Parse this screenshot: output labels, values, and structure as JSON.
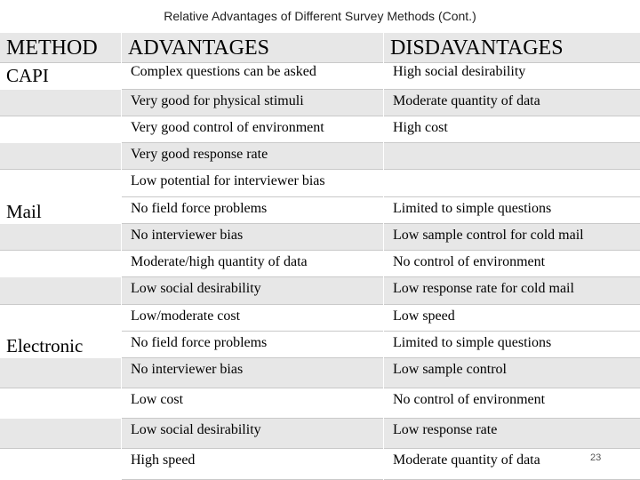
{
  "title": "Relative Advantages of Different Survey Methods (Cont.)",
  "headers": {
    "method": "METHOD",
    "advantages": "ADVANTAGES",
    "disadvantages": "DISDAVANTAGES"
  },
  "groups": [
    {
      "method": "CAPI",
      "rows": [
        {
          "adv": "Complex questions can be asked",
          "dis": "High social desirability"
        },
        {
          "adv": "Very good for physical stimuli",
          "dis": "Moderate quantity of data"
        },
        {
          "adv": "Very good control of environment",
          "dis": "High cost"
        },
        {
          "adv": "Very good response rate",
          "dis": ""
        },
        {
          "adv": "Low potential for interviewer bias",
          "dis": ""
        }
      ]
    },
    {
      "method": "Mail",
      "rows": [
        {
          "adv": "No field force problems",
          "dis": "Limited to simple questions"
        },
        {
          "adv": "No interviewer bias",
          "dis": "Low sample control for cold mail"
        },
        {
          "adv": "Moderate/high quantity of data",
          "dis": "No control of environment"
        },
        {
          "adv": "Low social desirability",
          "dis": "Low response rate for cold mail"
        },
        {
          "adv": "Low/moderate cost",
          "dis": "Low speed"
        }
      ]
    },
    {
      "method": "Electronic",
      "rows": [
        {
          "adv": "No field force problems",
          "dis": "Limited to simple questions"
        },
        {
          "adv": "No interviewer bias",
          "dis": "Low sample control"
        },
        {
          "adv": "Low cost",
          "dis": "No control of environment"
        },
        {
          "adv": "Low social desirability",
          "dis": "Low response rate"
        },
        {
          "adv": "High speed",
          "dis": "Moderate quantity of data"
        }
      ]
    }
  ],
  "page_number": "23"
}
